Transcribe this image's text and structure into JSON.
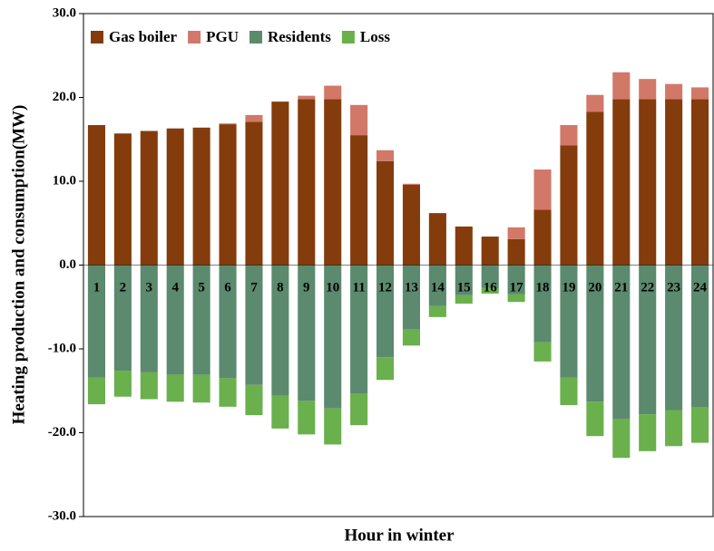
{
  "chart_data": {
    "type": "stacked_bar",
    "x_label": "Hour in winter",
    "y_label": "Heating production and consumption(MW)",
    "categories": [
      "1",
      "2",
      "3",
      "4",
      "5",
      "6",
      "7",
      "8",
      "9",
      "10",
      "11",
      "12",
      "13",
      "14",
      "15",
      "16",
      "17",
      "18",
      "19",
      "20",
      "21",
      "22",
      "23",
      "24"
    ],
    "series": [
      {
        "name": "Gas boiler",
        "color": "#843c0c",
        "values": [
          16.7,
          15.7,
          16.0,
          16.3,
          16.4,
          16.8,
          17.1,
          19.5,
          19.8,
          19.8,
          15.5,
          12.4,
          9.6,
          6.2,
          4.6,
          3.4,
          3.1,
          6.6,
          14.3,
          18.3,
          19.8,
          19.8,
          19.8,
          19.8
        ]
      },
      {
        "name": "PGU",
        "color": "#d27868",
        "values": [
          0,
          0,
          0,
          0,
          0,
          0.1,
          0.8,
          0,
          0.4,
          1.6,
          3.6,
          1.3,
          0.1,
          0,
          0,
          0,
          1.4,
          4.8,
          2.4,
          2.0,
          3.2,
          2.4,
          1.8,
          1.4
        ]
      },
      {
        "name": "Residents",
        "color": "#5b8a6e",
        "values": [
          -13.4,
          -12.6,
          -12.8,
          -13.1,
          -13.1,
          -13.5,
          -14.3,
          -15.6,
          -16.2,
          -17.1,
          -15.3,
          -11.0,
          -7.7,
          -4.9,
          -3.6,
          -2.7,
          -3.5,
          -9.2,
          -13.4,
          -16.3,
          -18.4,
          -17.8,
          -17.3,
          -17.0
        ]
      },
      {
        "name": "Loss",
        "color": "#6ab04c",
        "values": [
          -3.2,
          -3.1,
          -3.2,
          -3.2,
          -3.3,
          -3.4,
          -3.6,
          -3.9,
          -4.0,
          -4.3,
          -3.8,
          -2.7,
          -1.9,
          -1.3,
          -1.0,
          -0.7,
          -0.9,
          -2.3,
          -3.3,
          -4.1,
          -4.6,
          -4.4,
          -4.3,
          -4.2
        ]
      }
    ],
    "ylim": [
      -30,
      30
    ],
    "yticks": [
      {
        "value": -30,
        "label": "-30.0"
      },
      {
        "value": -20,
        "label": "-20.0"
      },
      {
        "value": -10,
        "label": "-10.0"
      },
      {
        "value": 0,
        "label": "0.0"
      },
      {
        "value": 10,
        "label": "10.0"
      },
      {
        "value": 20,
        "label": "20.0"
      },
      {
        "value": 30,
        "label": "30.0"
      }
    ],
    "legend": "top-left"
  }
}
